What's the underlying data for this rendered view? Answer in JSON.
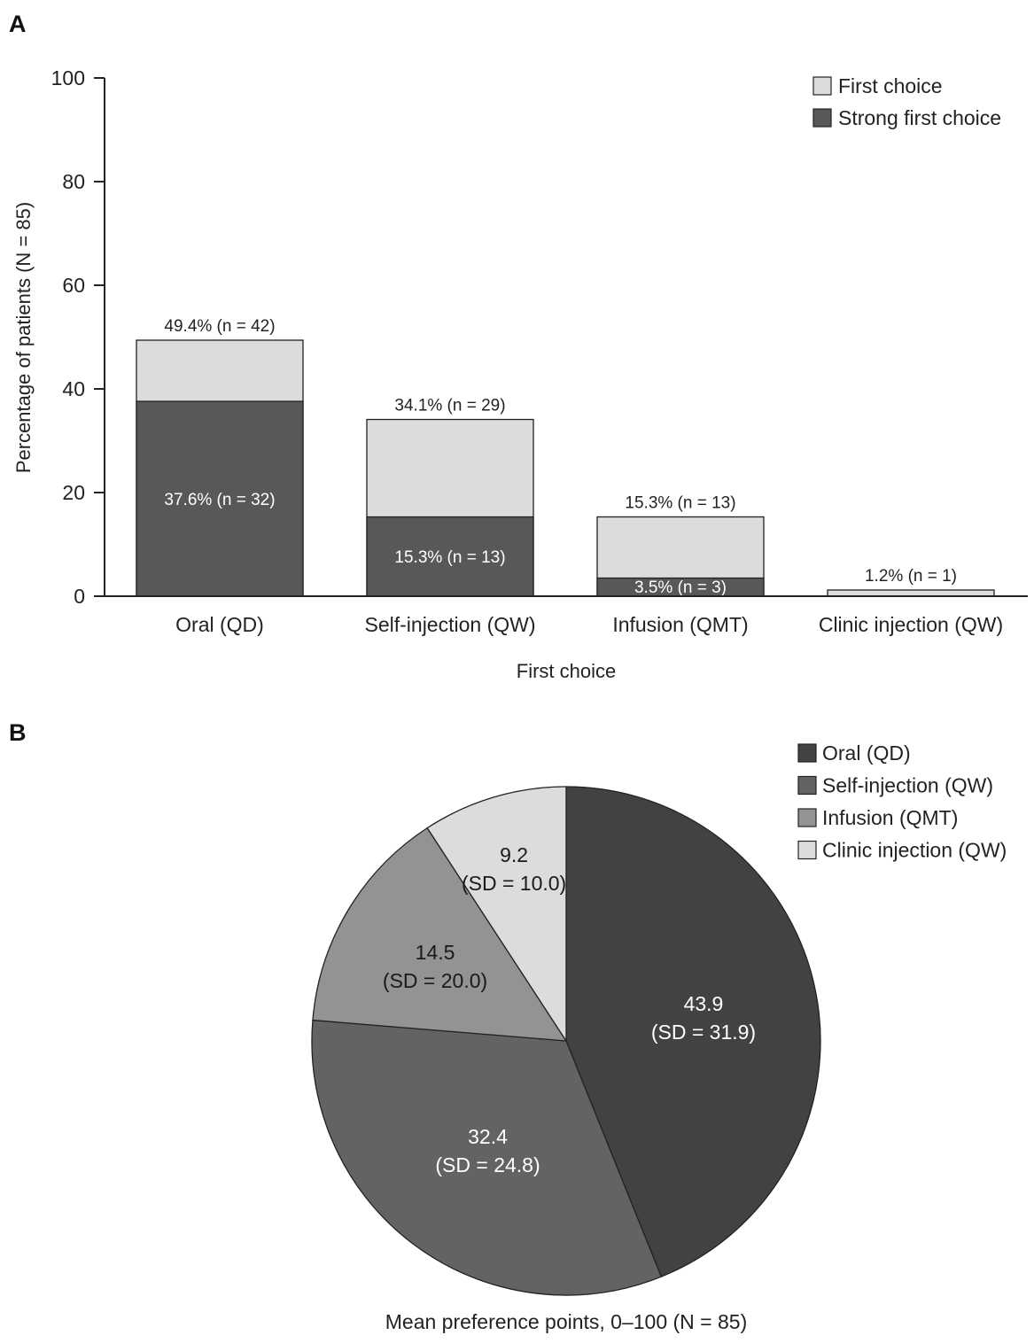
{
  "chart_data": [
    {
      "panel": "A",
      "type": "bar",
      "stacked": true,
      "xlabel": "First choice",
      "ylabel": "Percentage of patients (N = 85)",
      "ylim": [
        0,
        100
      ],
      "yticks": [
        "0",
        "20",
        "40",
        "60",
        "80",
        "100"
      ],
      "categories": [
        "Oral (QD)",
        "Self-injection (QW)",
        "Infusion (QMT)",
        "Clinic injection (QW)"
      ],
      "series": [
        {
          "name": "First choice",
          "values": [
            49.4,
            34.1,
            15.3,
            1.2
          ],
          "color": "#dcdcde"
        },
        {
          "name": "Strong first choice",
          "values": [
            37.6,
            15.3,
            3.5,
            0
          ],
          "color": "#58585a"
        }
      ],
      "total_labels": [
        "49.4% (n = 42)",
        "34.1% (n = 29)",
        "15.3% (n = 13)",
        "1.2% (n = 1)"
      ],
      "strong_labels": [
        "37.6% (n = 32)",
        "15.3% (n = 13)",
        "3.5% (n = 3)",
        ""
      ],
      "legend_position": "top-right",
      "grid": false
    },
    {
      "panel": "B",
      "type": "pie",
      "caption": "Mean preference points, 0–100 (N = 85)",
      "slices": [
        {
          "name": "Oral (QD)",
          "value": 43.9,
          "label": "43.9",
          "sd": "(SD = 31.9)",
          "color": "#424244",
          "text_color": "#ffffff"
        },
        {
          "name": "Self-injection (QW)",
          "value": 32.4,
          "label": "32.4",
          "sd": "(SD = 24.8)",
          "color": "#636365",
          "text_color": "#ffffff"
        },
        {
          "name": "Infusion (QMT)",
          "value": 14.5,
          "label": "14.5",
          "sd": "(SD = 20.0)",
          "color": "#939395",
          "text_color": "#1a1a1a"
        },
        {
          "name": "Clinic injection (QW)",
          "value": 9.2,
          "label": "9.2",
          "sd": "(SD = 10.0)",
          "color": "#dcdcde",
          "text_color": "#1a1a1a"
        }
      ],
      "legend_position": "top-right"
    }
  ]
}
